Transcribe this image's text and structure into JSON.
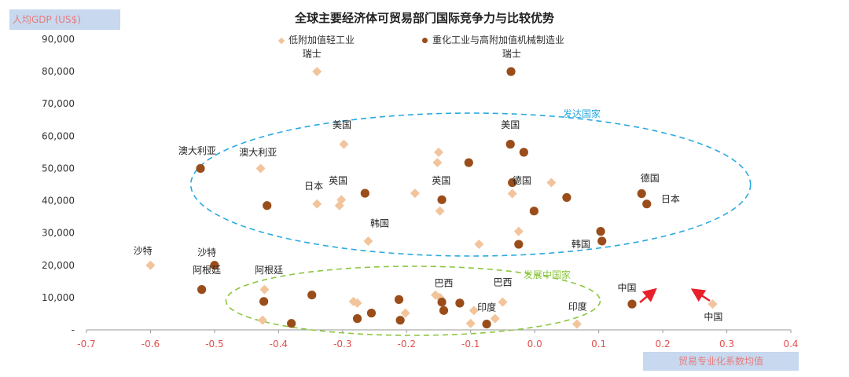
{
  "title": "全球主要经济体可贸易部门国际竞争力与比较优势",
  "chart_data": {
    "type": "scatter",
    "title": "全球主要经济体可贸易部门国际竞争力与比较优势",
    "xlabel": "贸易专业化系数均值",
    "ylabel": "人均GDP (US$)",
    "xlim": [
      -0.7,
      0.4
    ],
    "ylim": [
      0,
      90000
    ],
    "x_ticks": [
      "-0.7",
      "-0.6",
      "-0.5",
      "-0.4",
      "-0.3",
      "-0.2",
      "-0.1",
      "0.0",
      "0.1",
      "0.2",
      "0.3",
      "0.4"
    ],
    "y_ticks": [
      "-",
      "10,000",
      "20,000",
      "30,000",
      "40,000",
      "50,000",
      "60,000",
      "70,000",
      "80,000",
      "90,000"
    ],
    "legend_position": "top",
    "series": [
      {
        "name": "低附加值轻工业",
        "marker": "diamond",
        "color": "#f2c49b",
        "points": [
          [
            -0.34,
            80000
          ],
          [
            -0.298,
            57500
          ],
          [
            -0.428,
            50000
          ],
          [
            -0.15,
            55000
          ],
          [
            -0.152,
            51800
          ],
          [
            -0.34,
            39000
          ],
          [
            -0.302,
            40300
          ],
          [
            -0.305,
            38500
          ],
          [
            -0.187,
            42300
          ],
          [
            -0.148,
            36800
          ],
          [
            -0.035,
            42200
          ],
          [
            0.026,
            45600
          ],
          [
            -0.26,
            27500
          ],
          [
            -0.087,
            26500
          ],
          [
            -0.025,
            30500
          ],
          [
            -0.6,
            20000
          ],
          [
            -0.422,
            12500
          ],
          [
            -0.425,
            3000
          ],
          [
            -0.283,
            8800
          ],
          [
            -0.277,
            8300
          ],
          [
            -0.202,
            5200
          ],
          [
            -0.155,
            10800
          ],
          [
            -0.148,
            10000
          ],
          [
            -0.1,
            2000
          ],
          [
            -0.095,
            6000
          ],
          [
            -0.062,
            3500
          ],
          [
            -0.05,
            8600
          ],
          [
            0.066,
            1800
          ],
          [
            0.278,
            8000
          ]
        ]
      },
      {
        "name": "重化工业与高附加值机械制造业",
        "marker": "circle",
        "color": "#9a4d1a",
        "points": [
          [
            -0.037,
            80000
          ],
          [
            -0.038,
            57500
          ],
          [
            -0.017,
            55000
          ],
          [
            -0.103,
            51800
          ],
          [
            -0.522,
            50000
          ],
          [
            -0.418,
            38500
          ],
          [
            -0.265,
            42300
          ],
          [
            -0.145,
            40300
          ],
          [
            -0.035,
            45600
          ],
          [
            -0.001,
            36800
          ],
          [
            0.05,
            41000
          ],
          [
            0.167,
            42200
          ],
          [
            0.175,
            39000
          ],
          [
            -0.025,
            26500
          ],
          [
            0.103,
            30500
          ],
          [
            0.105,
            27500
          ],
          [
            -0.5,
            20000
          ],
          [
            -0.52,
            12500
          ],
          [
            -0.423,
            8800
          ],
          [
            -0.348,
            10800
          ],
          [
            -0.38,
            2000
          ],
          [
            -0.277,
            3500
          ],
          [
            -0.255,
            5200
          ],
          [
            -0.212,
            9400
          ],
          [
            -0.21,
            3000
          ],
          [
            -0.145,
            8600
          ],
          [
            -0.142,
            6000
          ],
          [
            -0.117,
            8300
          ],
          [
            -0.075,
            1800
          ],
          [
            0.152,
            8000
          ]
        ]
      }
    ],
    "point_labels": [
      {
        "text": "瑞士",
        "x": -0.348,
        "y": 84500
      },
      {
        "text": "瑞士",
        "x": -0.036,
        "y": 84500
      },
      {
        "text": "美国",
        "x": -0.301,
        "y": 62500
      },
      {
        "text": "美国",
        "x": -0.038,
        "y": 62500
      },
      {
        "text": "澳大利亚",
        "x": -0.527,
        "y": 54500
      },
      {
        "text": "澳大利亚",
        "x": -0.432,
        "y": 54000
      },
      {
        "text": "英国",
        "x": -0.307,
        "y": 45300
      },
      {
        "text": "英国",
        "x": -0.146,
        "y": 45300
      },
      {
        "text": "日本",
        "x": -0.345,
        "y": 43500
      },
      {
        "text": "日本",
        "x": 0.212,
        "y": 39500
      },
      {
        "text": "德国",
        "x": -0.02,
        "y": 45300
      },
      {
        "text": "德国",
        "x": 0.18,
        "y": 46000
      },
      {
        "text": "韩国",
        "x": -0.242,
        "y": 32000
      },
      {
        "text": "韩国",
        "x": 0.072,
        "y": 25500
      },
      {
        "text": "沙特",
        "x": -0.612,
        "y": 23500
      },
      {
        "text": "沙特",
        "x": -0.512,
        "y": 23000
      },
      {
        "text": "阿根廷",
        "x": -0.512,
        "y": 17500
      },
      {
        "text": "阿根廷",
        "x": -0.415,
        "y": 17500
      },
      {
        "text": "巴西",
        "x": -0.142,
        "y": 13500
      },
      {
        "text": "巴西",
        "x": -0.05,
        "y": 13800
      },
      {
        "text": "印度",
        "x": -0.075,
        "y": 6000
      },
      {
        "text": "印度",
        "x": 0.067,
        "y": 6200
      },
      {
        "text": "中国",
        "x": 0.144,
        "y": 12000
      },
      {
        "text": "中国",
        "x": 0.279,
        "y": 3000
      }
    ],
    "annotations": [
      {
        "text": "发达国家",
        "color": "#29a9e0"
      },
      {
        "text": "发展中国家",
        "color": "#8cc63f"
      }
    ]
  },
  "colors": {
    "light_marker": "#f2c49b",
    "heavy_marker": "#9a4d1a",
    "developed_ellipse": "#29a9e0",
    "developing_ellipse": "#8cc63f",
    "arrow": "#e8202a",
    "axis_tick_label": "#e05050",
    "label_box_bg": "#c7d8ef"
  }
}
